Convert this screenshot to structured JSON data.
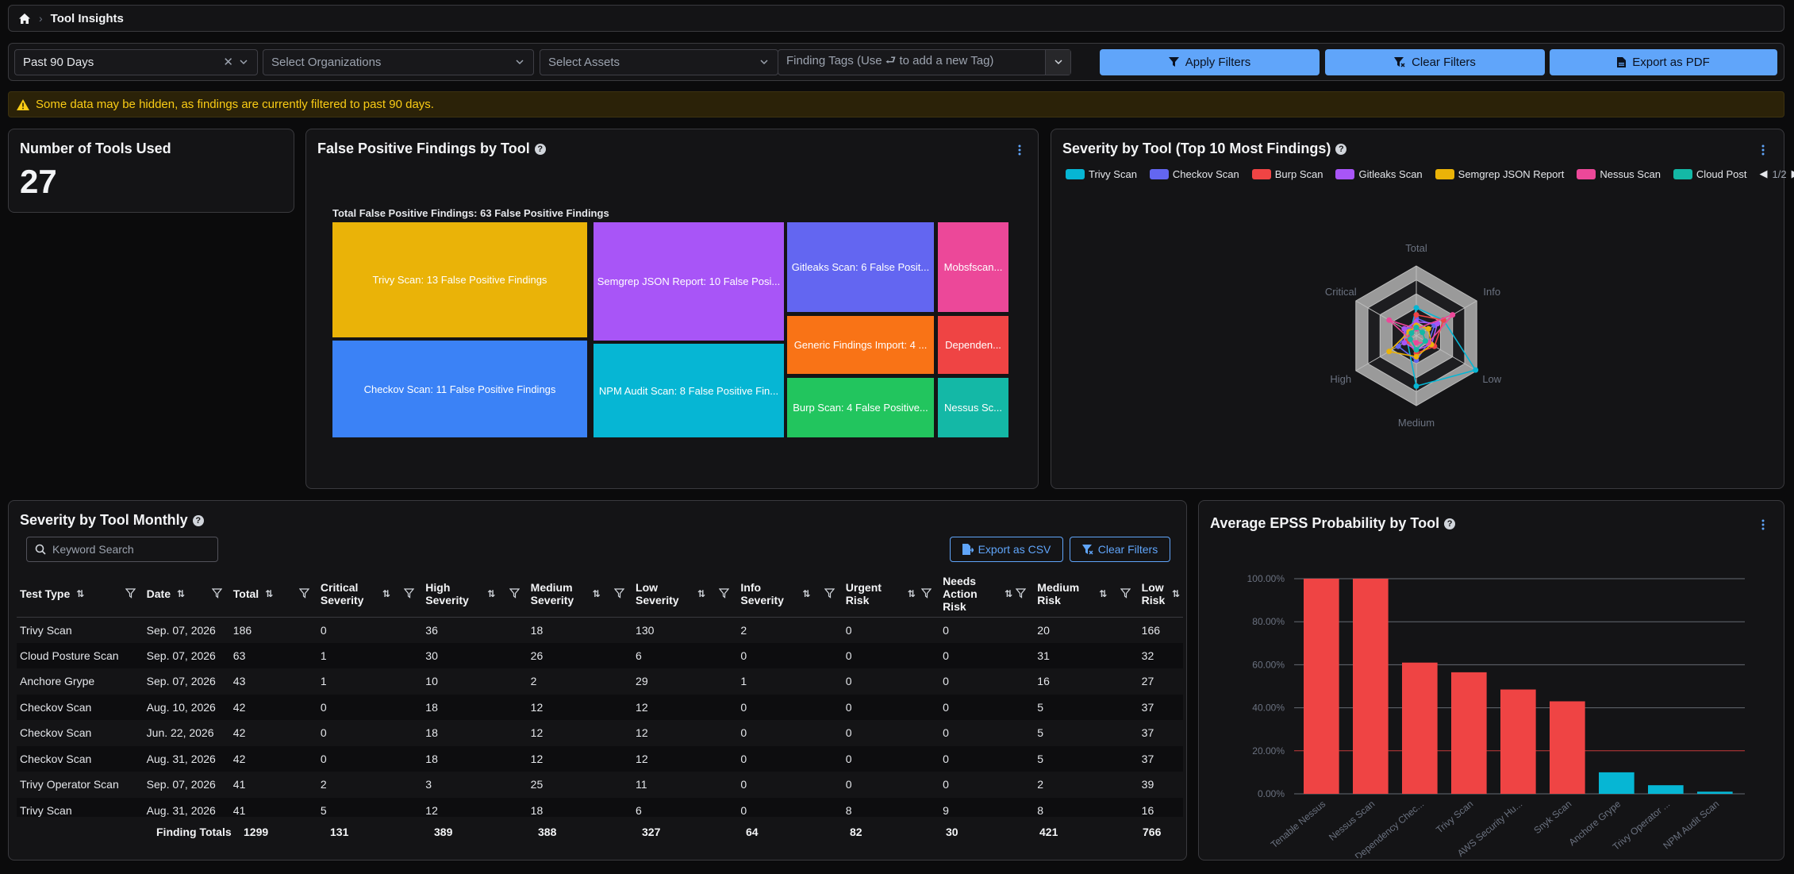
{
  "breadcrumb": {
    "home_icon": "home-icon",
    "current": "Tool Insights"
  },
  "filters": {
    "date_range": "Past 90 Days",
    "organizations_placeholder": "Select Organizations",
    "assets_placeholder": "Select Assets",
    "tags_placeholder": "Finding Tags (Use ⮐ to add a new Tag)",
    "apply_label": "Apply Filters",
    "clear_label": "Clear Filters",
    "export_label": "Export as PDF"
  },
  "warning": "Some data may be hidden, as findings are currently filtered to past 90 days.",
  "tools_card": {
    "title": "Number of Tools Used",
    "value": "27"
  },
  "false_positive": {
    "title": "False Positive Findings by Tool",
    "total_label": "Total False Positive Findings: 63 False Positive Findings",
    "tiles": [
      {
        "label": "Trivy Scan: 13 False Positive Findings",
        "color": "#eab308"
      },
      {
        "label": "Checkov Scan: 11 False Positive Findings",
        "color": "#3b82f6"
      },
      {
        "label": "Semgrep JSON Report: 10 False Posi...",
        "color": "#a855f7"
      },
      {
        "label": "NPM Audit Scan: 8 False Positive Fin...",
        "color": "#06b6d4"
      },
      {
        "label": "Gitleaks Scan: 6 False Posit...",
        "color": "#6366f1"
      },
      {
        "label": "Generic Findings Import: 4 ...",
        "color": "#f97316"
      },
      {
        "label": "Burp Scan: 4 False Positive...",
        "color": "#22c55e"
      },
      {
        "label": "Mobsfscan...",
        "color": "#ec4899"
      },
      {
        "label": "Dependen...",
        "color": "#ef4444"
      },
      {
        "label": "Nessus Sc...",
        "color": "#14b8a6"
      }
    ]
  },
  "severity_radar": {
    "title": "Severity by Tool (Top 10 Most Findings)",
    "legend": [
      {
        "name": "Trivy Scan",
        "color": "#06b6d4"
      },
      {
        "name": "Checkov Scan",
        "color": "#6366f1"
      },
      {
        "name": "Burp Scan",
        "color": "#ef4444"
      },
      {
        "name": "Gitleaks Scan",
        "color": "#a855f7"
      },
      {
        "name": "Semgrep JSON Report",
        "color": "#eab308"
      },
      {
        "name": "Nessus Scan",
        "color": "#ec4899"
      },
      {
        "name": "Cloud Post",
        "color": "#14b8a6"
      }
    ],
    "pager": "1/2",
    "axes": [
      "Total",
      "Info",
      "Low",
      "Medium",
      "High",
      "Critical"
    ]
  },
  "monthly": {
    "title": "Severity by Tool Monthly",
    "search_placeholder": "Keyword Search",
    "export_csv_label": "Export as CSV",
    "clear_filters_label": "Clear Filters",
    "columns": [
      "Test Type",
      "Date",
      "Total",
      "Critical Severity",
      "High Severity",
      "Medium Severity",
      "Low Severity",
      "Info Severity",
      "Urgent Risk",
      "Needs Action Risk",
      "Medium Risk",
      "Low Risk"
    ],
    "rows": [
      [
        "Trivy Scan",
        "Sep. 07, 2026",
        "186",
        "0",
        "36",
        "18",
        "130",
        "2",
        "0",
        "0",
        "20",
        "166"
      ],
      [
        "Cloud Posture Scan",
        "Sep. 07, 2026",
        "63",
        "1",
        "30",
        "26",
        "6",
        "0",
        "0",
        "0",
        "31",
        "32"
      ],
      [
        "Anchore Grype",
        "Sep. 07, 2026",
        "43",
        "1",
        "10",
        "2",
        "29",
        "1",
        "0",
        "0",
        "16",
        "27"
      ],
      [
        "Checkov Scan",
        "Aug. 10, 2026",
        "42",
        "0",
        "18",
        "12",
        "12",
        "0",
        "0",
        "0",
        "5",
        "37"
      ],
      [
        "Checkov Scan",
        "Jun. 22, 2026",
        "42",
        "0",
        "18",
        "12",
        "12",
        "0",
        "0",
        "0",
        "5",
        "37"
      ],
      [
        "Checkov Scan",
        "Aug. 31, 2026",
        "42",
        "0",
        "18",
        "12",
        "12",
        "0",
        "0",
        "0",
        "5",
        "37"
      ],
      [
        "Trivy Operator Scan",
        "Sep. 07, 2026",
        "41",
        "2",
        "3",
        "25",
        "11",
        "0",
        "0",
        "0",
        "2",
        "39"
      ],
      [
        "Trivy Scan",
        "Aug. 31, 2026",
        "41",
        "5",
        "12",
        "18",
        "6",
        "0",
        "8",
        "9",
        "8",
        "16"
      ]
    ],
    "totals_label": "Finding Totals",
    "totals": [
      "1299",
      "131",
      "389",
      "388",
      "327",
      "64",
      "82",
      "30",
      "421",
      "766"
    ]
  },
  "epss": {
    "title": "Average EPSS Probability by Tool",
    "chart_data": {
      "type": "bar",
      "categories": [
        "Tenable Nessus",
        "Nessus Scan",
        "Dependency Chec...",
        "Trivy Scan",
        "AWS Security Hu...",
        "Snyk Scan",
        "Anchore Grype",
        "Trivy Operator ...",
        "NPM Audit Scan"
      ],
      "values": [
        100,
        100,
        61,
        56.5,
        48.5,
        43,
        10,
        4,
        1
      ],
      "colors": [
        "#ef4444",
        "#ef4444",
        "#ef4444",
        "#ef4444",
        "#ef4444",
        "#ef4444",
        "#06b6d4",
        "#06b6d4",
        "#06b6d4"
      ],
      "y_ticks": [
        "0.00%",
        "20.00%",
        "40.00%",
        "60.00%",
        "80.00%",
        "100.00%"
      ],
      "ylim": [
        0,
        100
      ],
      "threshold": 20,
      "grid": true
    }
  }
}
